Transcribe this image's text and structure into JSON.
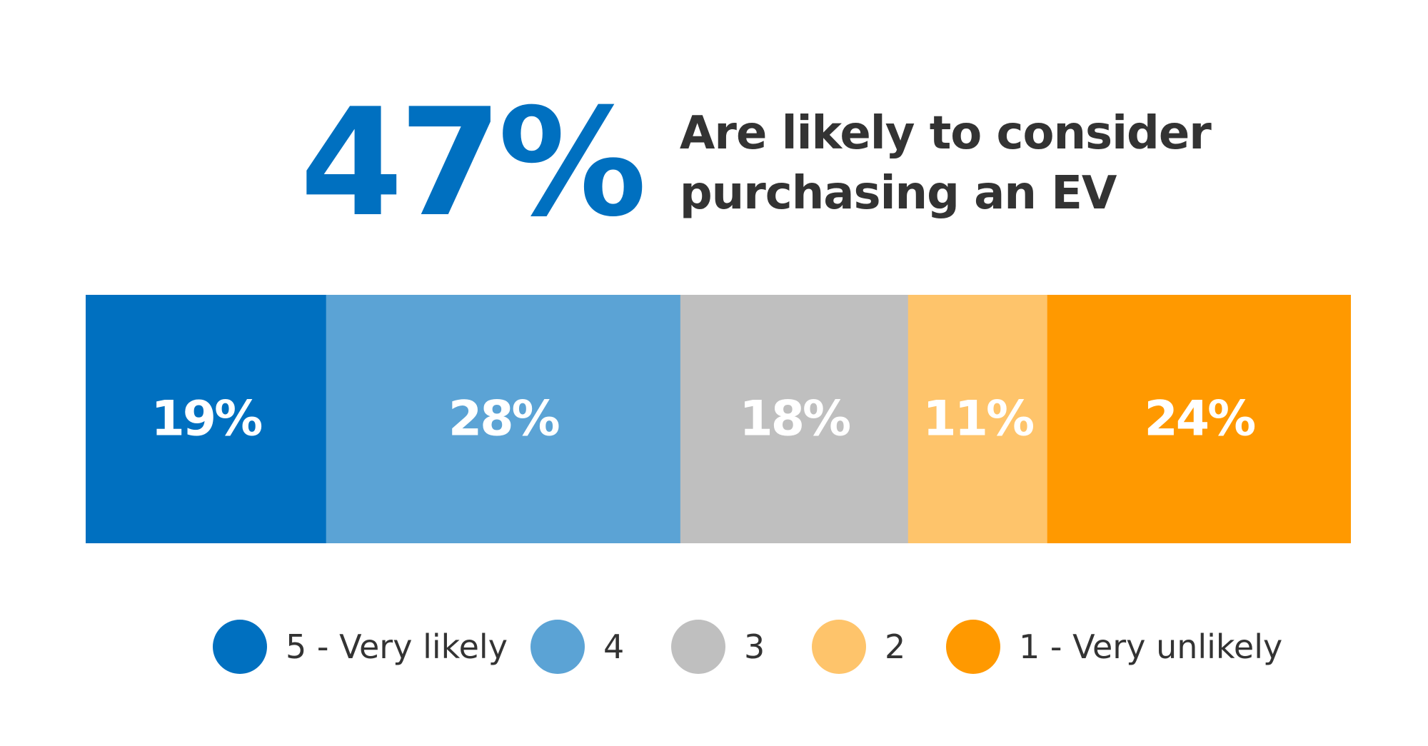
{
  "headline": {
    "stat": "47%",
    "subtitle_line1": "Are likely to consider",
    "subtitle_line2": "purchasing an EV"
  },
  "chart_data": {
    "type": "bar",
    "orientation": "horizontal-stacked-100",
    "categories": [
      "5 - Very likely",
      "4",
      "3",
      "2",
      "1 - Very unlikely"
    ],
    "values": [
      19,
      28,
      18,
      11,
      24
    ],
    "labels": [
      "19%",
      "28%",
      "18%",
      "11%",
      "24%"
    ],
    "colors": [
      "#0070C0",
      "#5BA3D5",
      "#BFBFBF",
      "#FEC46B",
      "#FF9900"
    ],
    "label_color": "#FFFFFF",
    "legend_position": "bottom",
    "grid": false
  },
  "legend": {
    "items": [
      {
        "label": "5 - Very likely",
        "color": "#0070C0"
      },
      {
        "label": "4",
        "color": "#5BA3D5"
      },
      {
        "label": "3",
        "color": "#BFBFBF"
      },
      {
        "label": "2",
        "color": "#FEC46B"
      },
      {
        "label": "1 - Very unlikely",
        "color": "#FF9900"
      }
    ]
  }
}
